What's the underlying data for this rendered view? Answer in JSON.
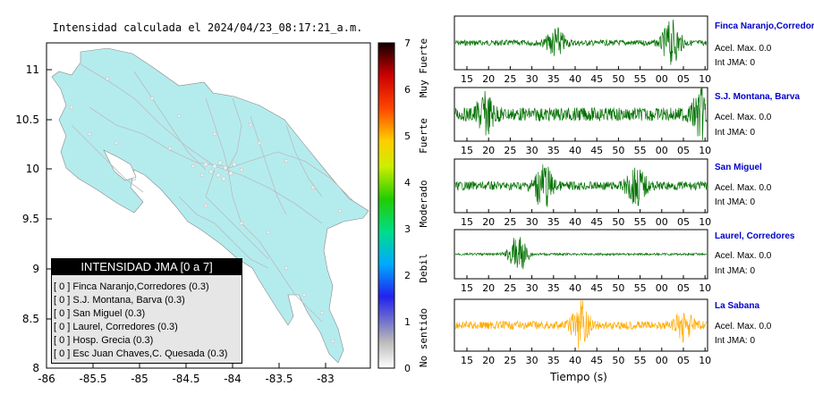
{
  "header": {
    "title": "Intensidad calculada el 2024/04/23_08:17:21_a.m."
  },
  "colors": {
    "land": "#b4ecee",
    "roads": "#c0c0c0",
    "trace_green": "#007000",
    "trace_orange": "#ffaa00",
    "station_name": "#0000cc"
  },
  "chart_data": [
    {
      "type": "map",
      "title": "Intensidad calculada el 2024/04/23_08:17:21_a.m.",
      "x_ticks": [
        "-86",
        "-85.5",
        "-85",
        "-84.5",
        "-84",
        "-83.5",
        "-83"
      ],
      "y_ticks": [
        "8",
        "8.5",
        "9",
        "9.5",
        "10",
        "10.5",
        "11"
      ],
      "xlim": [
        -86,
        -82.5
      ],
      "ylim": [
        8,
        11.3
      ],
      "legend": {
        "title": "INTENSIDAD JMA [0 a 7]",
        "items": [
          "[ 0 ]  Finca Naranjo,Corredores (0.3)",
          "[ 0 ]  S.J. Montana, Barva (0.3)",
          "[ 0 ]  San Miguel (0.3)",
          "[ 0 ]  Laurel, Corredores (0.3)",
          "[ 0 ]  Hosp. Grecia (0.3)",
          "[ 0 ]  Esc Juan Chaves,C. Quesada (0.3)"
        ]
      }
    },
    {
      "type": "heatmap",
      "title": "colorbar",
      "range": [
        0,
        7
      ],
      "ticks": [
        "0",
        "1",
        "2",
        "3",
        "4",
        "5",
        "6",
        "7"
      ],
      "category_labels": [
        "No sentido",
        "Debil",
        "Moderado",
        "Fuerte",
        "Muy Fuerte"
      ]
    },
    {
      "type": "line",
      "xlabel": "Tiempo (s)",
      "x_tick_labels": [
        "15",
        "20",
        "25",
        "30",
        "35",
        "40",
        "45",
        "50",
        "55",
        "00",
        "05",
        "10"
      ],
      "stations": [
        {
          "name": "Finca Naranjo,Corredores",
          "acel": "Acel. Max. 0.0",
          "int": "Int JMA: 0",
          "color": "#007000"
        },
        {
          "name": "S.J. Montana, Barva",
          "acel": "Acel. Max. 0.0",
          "int": "Int JMA: 0",
          "color": "#007000"
        },
        {
          "name": "San Miguel",
          "acel": "Acel. Max. 0.0",
          "int": "Int JMA: 0",
          "color": "#007000"
        },
        {
          "name": "Laurel, Corredores",
          "acel": "Acel. Max. 0.0",
          "int": "Int JMA: 0",
          "color": "#007000"
        },
        {
          "name": "La Sabana",
          "acel": "Acel. Max. 0.0",
          "int": "Int JMA: 0",
          "color": "#ffaa00"
        }
      ]
    }
  ]
}
